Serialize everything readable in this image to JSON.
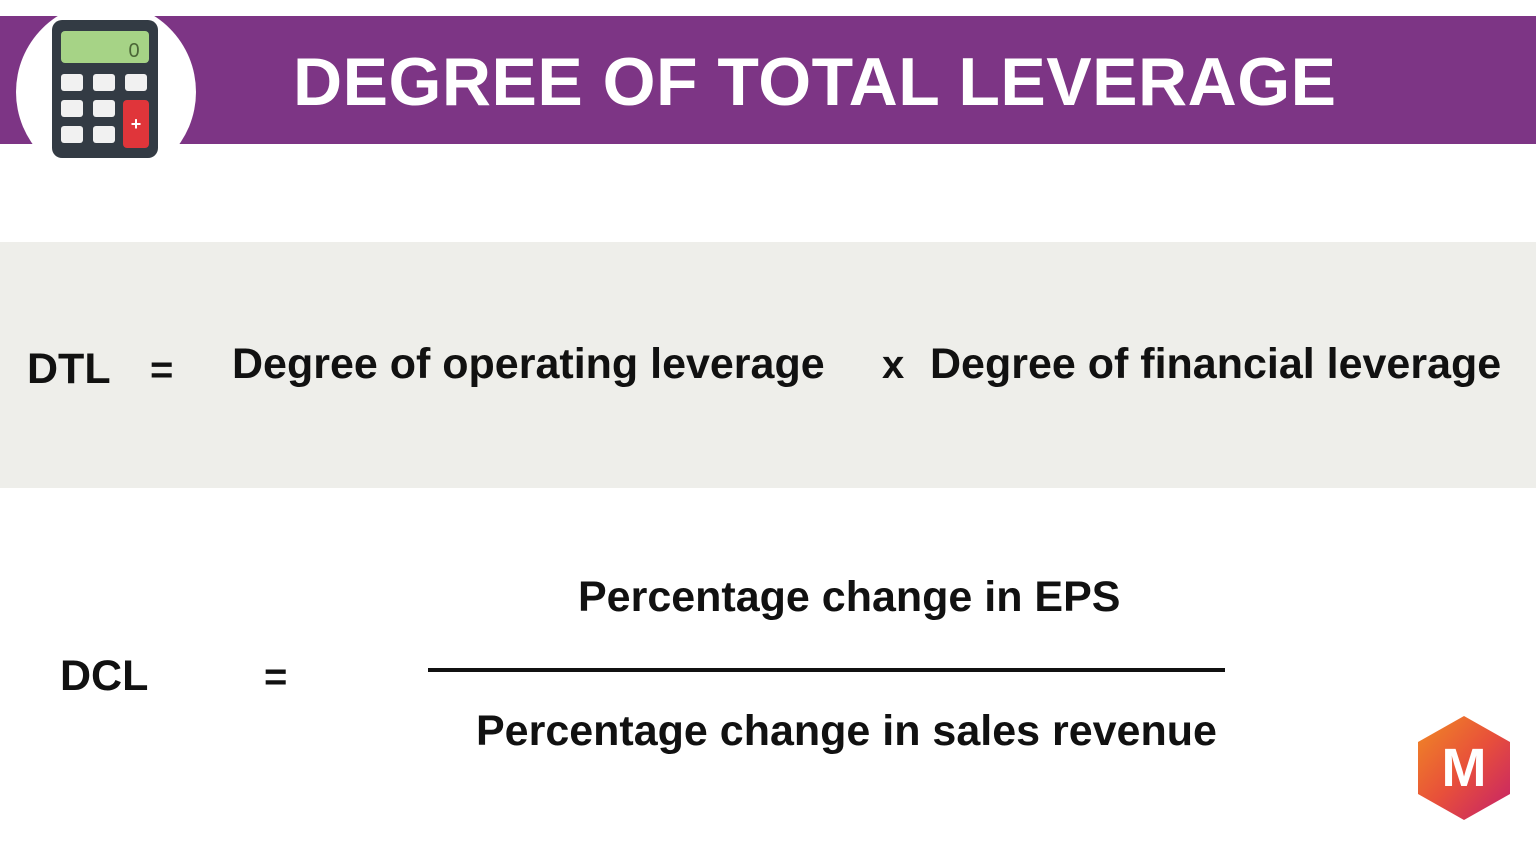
{
  "header": {
    "title": "DEGREE OF TOTAL LEVERAGE",
    "icon": "calculator-icon",
    "calculator_display": "0",
    "calculator_key": "+",
    "background_color": "#7d3585"
  },
  "formula_1": {
    "lhs": "DTL",
    "equals": "=",
    "term_1": "Degree of operating leverage",
    "operator": "x",
    "term_2": "Degree of financial leverage",
    "band_color": "#eeeeea"
  },
  "formula_2": {
    "lhs": "DCL",
    "equals": "=",
    "numerator": "Percentage change in EPS",
    "denominator": "Percentage change in sales revenue"
  },
  "brand": {
    "letter": "M",
    "icon": "brand-hexagon-logo"
  }
}
